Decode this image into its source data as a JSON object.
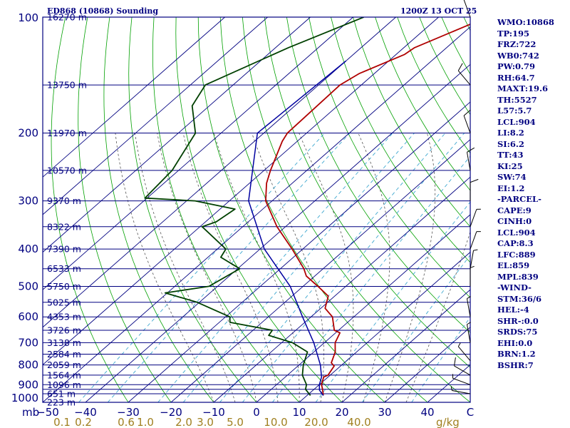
{
  "header": {
    "title_left": "ED868 (10868) Sounding",
    "title_right": "1200Z 13 OCT 25"
  },
  "indices": [
    "WMO:10868",
    "TP:195",
    "FRZ:722",
    "WB0:742",
    "PW:0.79",
    "RH:64.7",
    "MAXT:19.6",
    "TH:5527",
    "L57:5.7",
    "LCL:904",
    "LI:8.2",
    "SI:6.2",
    "TT:43",
    "KI:25",
    "SW:74",
    "EI:1.2",
    "-PARCEL-",
    "CAPE:9",
    "CINH:0",
    "LCL:904",
    "CAP:8.3",
    "LFC:889",
    "EL:859",
    "MPL:839",
    "-WIND-",
    "STM:36/6",
    "HEL:-4",
    "SHR-:0.0",
    "SRDS:75",
    "EHI:0.0",
    "BRN:1.2",
    "BSHR:7"
  ],
  "colors": {
    "frame": "#000080",
    "isobar": "#000080",
    "isotherm": "#000080",
    "dry_adiabat": "#00a000",
    "moist_adiabat": "#555555",
    "mixing_ratio": "#3fa8d0",
    "temperature": "#b00000",
    "dewpoint": "#004000",
    "parcel": "#0000a0",
    "axis_text": "#000080",
    "mixing_text": "#a08020"
  },
  "chart_data": {
    "type": "skew-t",
    "xlim": [
      -50,
      50
    ],
    "ylim": [
      100,
      1000
    ],
    "y_scale": "log-pressure",
    "pressure_labels": [
      100,
      200,
      300,
      400,
      500,
      600,
      700,
      800,
      900,
      1000
    ],
    "temperature_ticks": [
      "−50",
      "−40",
      "−30",
      "−20",
      "−10",
      "0",
      "10",
      "20",
      "30",
      "40",
      "C"
    ],
    "y_unit_label": "mb",
    "mixing_ratio_ticks": [
      {
        "label": "0.1",
        "T": -45.5
      },
      {
        "label": "0.2",
        "T": -40.5
      },
      {
        "label": "0.6",
        "T": -30.5
      },
      {
        "label": "1.0",
        "T": -26
      },
      {
        "label": "2.0",
        "T": -17
      },
      {
        "label": "3.0",
        "T": -12
      },
      {
        "label": "5.0",
        "T": -5
      },
      {
        "label": "10.0",
        "T": 4.5
      },
      {
        "label": "20.0",
        "T": 14
      },
      {
        "label": "40.0",
        "T": 24
      }
    ],
    "mixing_unit": "g/kg",
    "height_labels": [
      {
        "p": 100,
        "label": "16270 m"
      },
      {
        "p": 150,
        "label": "13750 m"
      },
      {
        "p": 200,
        "label": "11970 m"
      },
      {
        "p": 250,
        "label": "10570 m"
      },
      {
        "p": 300,
        "label": "9370 m"
      },
      {
        "p": 350,
        "label": "8322 m"
      },
      {
        "p": 400,
        "label": "7390 m"
      },
      {
        "p": 450,
        "label": "6533 m"
      },
      {
        "p": 500,
        "label": "5750 m"
      },
      {
        "p": 550,
        "label": "5025 m"
      },
      {
        "p": 600,
        "label": "4353 m"
      },
      {
        "p": 650,
        "label": "3726 m"
      },
      {
        "p": 700,
        "label": "3138 m"
      },
      {
        "p": 750,
        "label": "2584 m"
      },
      {
        "p": 800,
        "label": "2059 m"
      },
      {
        "p": 850,
        "label": "1564 m"
      },
      {
        "p": 900,
        "label": "1096 m"
      },
      {
        "p": 950,
        "label": "651 m"
      },
      {
        "p": 1000,
        "label": "223 m"
      }
    ],
    "isobars": [
      100,
      150,
      200,
      250,
      300,
      350,
      400,
      450,
      500,
      550,
      600,
      650,
      700,
      750,
      800,
      850,
      900,
      925,
      950,
      1000
    ],
    "isotherms": [
      -110,
      -100,
      -90,
      -80,
      -70,
      -60,
      -50,
      -40,
      -30,
      -20,
      -10,
      0,
      10,
      20,
      30,
      40,
      50
    ],
    "dry_adiabats_theta_C": [
      -30,
      -20,
      -10,
      0,
      10,
      20,
      30,
      40,
      50,
      60,
      70,
      80,
      90,
      100,
      110,
      120,
      130,
      140,
      150,
      160,
      170,
      180,
      190,
      200
    ],
    "moist_adiabats_C": [
      -10,
      -5,
      0,
      5,
      10,
      15,
      20,
      25,
      30,
      35
    ],
    "mixing_ratios": [
      0.1,
      0.2,
      0.6,
      1,
      2,
      3,
      5,
      10,
      20,
      40
    ],
    "series": [
      {
        "name": "temperature",
        "points": [
          [
            100,
            -48.5
          ],
          [
            105,
            -51
          ],
          [
            120,
            -57.5
          ],
          [
            125,
            -58
          ],
          [
            140,
            -63.5
          ],
          [
            150,
            -65
          ],
          [
            200,
            -64.5
          ],
          [
            210,
            -63.5
          ],
          [
            250,
            -58.5
          ],
          [
            270,
            -56
          ],
          [
            300,
            -51.5
          ],
          [
            350,
            -42
          ],
          [
            400,
            -32.5
          ],
          [
            450,
            -24.5
          ],
          [
            470,
            -22
          ],
          [
            500,
            -16.5
          ],
          [
            530,
            -11.5
          ],
          [
            570,
            -9
          ],
          [
            600,
            -5
          ],
          [
            650,
            -1
          ],
          [
            660,
            1
          ],
          [
            700,
            2.5
          ],
          [
            740,
            5
          ],
          [
            790,
            7
          ],
          [
            805,
            8.5
          ],
          [
            850,
            9.5
          ],
          [
            860,
            9
          ],
          [
            900,
            10.5
          ],
          [
            925,
            12
          ],
          [
            960,
            13.8
          ]
        ]
      },
      {
        "name": "dewpoint",
        "points": [
          [
            100,
            -77.5
          ],
          [
            120,
            -87
          ],
          [
            150,
            -96.5
          ],
          [
            170,
            -94
          ],
          [
            200,
            -86
          ],
          [
            250,
            -81.5
          ],
          [
            295,
            -80.5
          ],
          [
            300,
            -68
          ],
          [
            315,
            -56.5
          ],
          [
            340,
            -57.5
          ],
          [
            350,
            -59.5
          ],
          [
            400,
            -48
          ],
          [
            420,
            -47
          ],
          [
            450,
            -39.5
          ],
          [
            500,
            -42
          ],
          [
            520,
            -50.5
          ],
          [
            550,
            -40.5
          ],
          [
            600,
            -29
          ],
          [
            620,
            -27.5
          ],
          [
            650,
            -15.5
          ],
          [
            670,
            -15
          ],
          [
            700,
            -7.5
          ],
          [
            740,
            -1.5
          ],
          [
            800,
            1
          ],
          [
            850,
            3.5
          ],
          [
            900,
            7
          ],
          [
            925,
            8
          ],
          [
            960,
            10.8
          ]
        ]
      },
      {
        "name": "parcel",
        "points": [
          [
            130,
            -70
          ],
          [
            200,
            -71.5
          ],
          [
            300,
            -55.5
          ],
          [
            400,
            -39
          ],
          [
            500,
            -23
          ],
          [
            600,
            -12
          ],
          [
            700,
            -2.5
          ],
          [
            800,
            5
          ],
          [
            860,
            8.5
          ],
          [
            900,
            10
          ],
          [
            930,
            11.5
          ],
          [
            960,
            13.8
          ]
        ]
      }
    ],
    "wind_barbs": [
      {
        "p": 100,
        "dir": 340,
        "kt": 5
      },
      {
        "p": 150,
        "dir": 320,
        "kt": 10
      },
      {
        "p": 200,
        "dir": 340,
        "kt": 10
      },
      {
        "p": 250,
        "dir": 350,
        "kt": 10
      },
      {
        "p": 300,
        "dir": 360,
        "kt": 10
      },
      {
        "p": 350,
        "dir": 20,
        "kt": 5
      },
      {
        "p": 400,
        "dir": 20,
        "kt": 5
      },
      {
        "p": 450,
        "dir": 10,
        "kt": 5
      },
      {
        "p": 500,
        "dir": 360,
        "kt": 5
      },
      {
        "p": 600,
        "dir": 350,
        "kt": 5
      },
      {
        "p": 700,
        "dir": 350,
        "kt": 5
      },
      {
        "p": 780,
        "dir": 320,
        "kt": 5
      },
      {
        "p": 850,
        "dir": 300,
        "kt": 10
      },
      {
        "p": 900,
        "dir": 290,
        "kt": 5
      },
      {
        "p": 950,
        "dir": 280,
        "kt": 5
      }
    ]
  }
}
